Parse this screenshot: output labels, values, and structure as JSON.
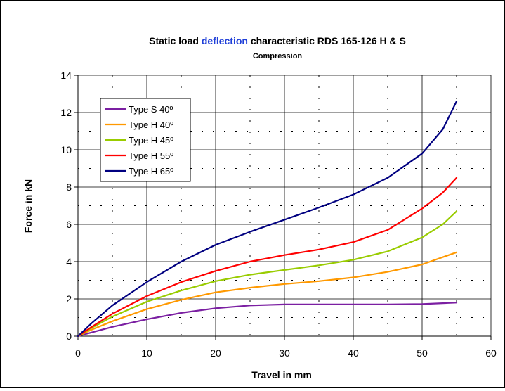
{
  "chart_data": {
    "type": "line",
    "title_parts": [
      {
        "text": "Static load ",
        "color": "#000000"
      },
      {
        "text": "deflection",
        "color": "#1f3fd8"
      },
      {
        "text": " characteristic RDS 165-126 H & S",
        "color": "#000000"
      }
    ],
    "subtitle": "Compression",
    "xlabel": "Travel in mm",
    "ylabel": "Force in kN",
    "xlim": [
      0,
      60
    ],
    "ylim": [
      0,
      14
    ],
    "xticks": [
      0,
      10,
      20,
      30,
      40,
      50,
      60
    ],
    "yticks": [
      0,
      2,
      4,
      6,
      8,
      10,
      12,
      14
    ],
    "grid": true,
    "legend_position": "top-left",
    "series": [
      {
        "name": "Type S 40º",
        "color": "#7b1fa2",
        "x": [
          0,
          2,
          5,
          10,
          15,
          20,
          25,
          30,
          35,
          40,
          45,
          50,
          55
        ],
        "y": [
          0,
          0.2,
          0.5,
          0.9,
          1.25,
          1.5,
          1.65,
          1.7,
          1.7,
          1.7,
          1.7,
          1.72,
          1.8
        ]
      },
      {
        "name": "Type H 40º",
        "color": "#ff9900",
        "x": [
          0,
          2,
          5,
          10,
          15,
          20,
          25,
          30,
          35,
          40,
          45,
          50,
          55
        ],
        "y": [
          0,
          0.35,
          0.8,
          1.45,
          1.95,
          2.35,
          2.6,
          2.8,
          2.95,
          3.15,
          3.45,
          3.85,
          4.5
        ]
      },
      {
        "name": "Type H 45º",
        "color": "#99cc00",
        "x": [
          0,
          2,
          5,
          10,
          15,
          20,
          25,
          30,
          35,
          40,
          45,
          50,
          53,
          55
        ],
        "y": [
          0,
          0.45,
          1.05,
          1.85,
          2.45,
          2.95,
          3.3,
          3.55,
          3.8,
          4.1,
          4.55,
          5.3,
          6.0,
          6.7
        ]
      },
      {
        "name": "Type H 55º",
        "color": "#ff0000",
        "x": [
          0,
          2,
          5,
          10,
          15,
          20,
          25,
          30,
          35,
          40,
          45,
          50,
          53,
          55
        ],
        "y": [
          0,
          0.5,
          1.2,
          2.15,
          2.9,
          3.5,
          4.0,
          4.35,
          4.65,
          5.05,
          5.7,
          6.85,
          7.7,
          8.5
        ]
      },
      {
        "name": "Type H 65º",
        "color": "#000080",
        "x": [
          0,
          2,
          5,
          10,
          15,
          20,
          25,
          30,
          35,
          40,
          45,
          50,
          53,
          55
        ],
        "y": [
          0,
          0.7,
          1.65,
          2.9,
          4.0,
          4.9,
          5.6,
          6.25,
          6.9,
          7.6,
          8.5,
          9.8,
          11.1,
          12.6
        ]
      }
    ]
  }
}
